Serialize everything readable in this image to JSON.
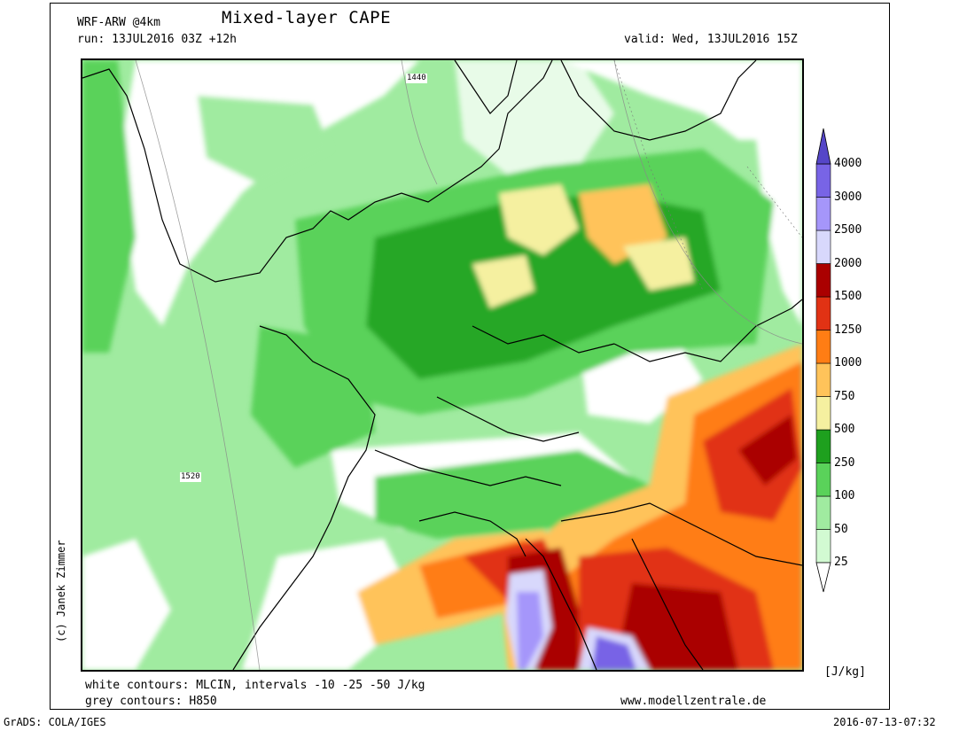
{
  "header": {
    "model": "WRF-ARW @4km",
    "title": "Mixed-layer CAPE",
    "run": "run: 13JUL2016 03Z +12h",
    "valid": "valid: Wed, 13JUL2016 15Z"
  },
  "map": {
    "contour_labels": [
      "1440",
      "1520"
    ]
  },
  "legend": {
    "levels": [
      "25",
      "50",
      "100",
      "250",
      "500",
      "750",
      "1000",
      "1250",
      "1500",
      "2000",
      "2500",
      "3000",
      "4000"
    ],
    "colors": [
      "#d2fad2",
      "#a0eba0",
      "#5ad25a",
      "#1ea01e",
      "#f5f0a0",
      "#ffc35a",
      "#ff7d14",
      "#e13214",
      "#aa0000",
      "#d8d8fc",
      "#a596fa",
      "#7864e6",
      "#5546c8"
    ],
    "unit": "[J/kg]"
  },
  "footer": {
    "note1": "white contours: MLCIN, intervals -10 -25 -50 J/kg",
    "note2": "grey contours: H850",
    "website": "www.modellzentrale.de",
    "credit": "(c) Janek Zimmer",
    "grads": "GrADS: COLA/IGES",
    "timestamp": "2016-07-13-07:32"
  }
}
